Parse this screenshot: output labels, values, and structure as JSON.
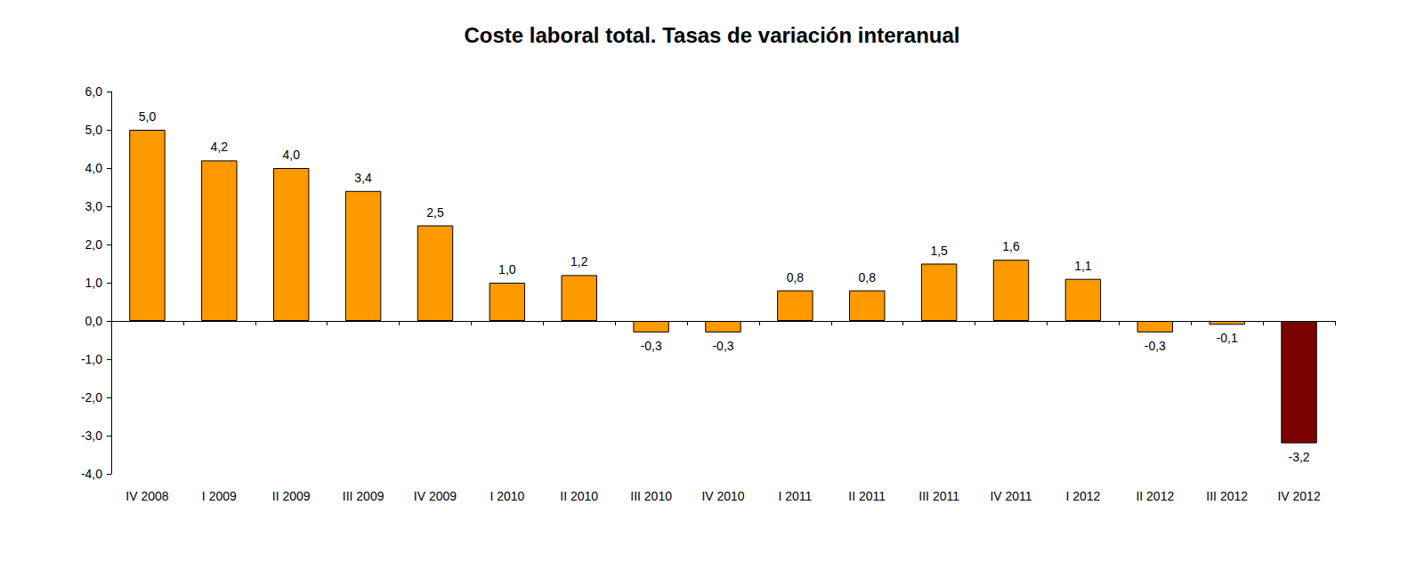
{
  "chart_data": {
    "type": "bar",
    "title": "Coste laboral total. Tasas de variación interanual",
    "categories": [
      "IV 2008",
      "I 2009",
      "II 2009",
      "III 2009",
      "IV 2009",
      "I 2010",
      "II 2010",
      "III 2010",
      "IV 2010",
      "I 2011",
      "II 2011",
      "III 2011",
      "IV 2011",
      "I 2012",
      "II 2012",
      "III 2012",
      "IV 2012"
    ],
    "values": [
      5.0,
      4.2,
      4.0,
      3.4,
      2.5,
      1.0,
      1.2,
      -0.3,
      -0.3,
      0.8,
      0.8,
      1.5,
      1.6,
      1.1,
      -0.3,
      -0.1,
      -3.2
    ],
    "value_labels": [
      "5,0",
      "4,2",
      "4,0",
      "3,4",
      "2,5",
      "1,0",
      "1,2",
      "-0,3",
      "-0,3",
      "0,8",
      "0,8",
      "1,5",
      "1,6",
      "1,1",
      "-0,3",
      "-0,1",
      "-3,2"
    ],
    "colors": [
      "#ff9900",
      "#ff9900",
      "#ff9900",
      "#ff9900",
      "#ff9900",
      "#ff9900",
      "#ff9900",
      "#ff9900",
      "#ff9900",
      "#ff9900",
      "#ff9900",
      "#ff9900",
      "#ff9900",
      "#ff9900",
      "#ff9900",
      "#ff9900",
      "#7b0000"
    ],
    "ylim": [
      -4,
      6
    ],
    "yticks": [
      {
        "value": -4,
        "label": "-4,0"
      },
      {
        "value": -3,
        "label": "-3,0"
      },
      {
        "value": -2,
        "label": "-2,0"
      },
      {
        "value": -1,
        "label": "-1,0"
      },
      {
        "value": 0,
        "label": "0,0"
      },
      {
        "value": 1,
        "label": "1,0"
      },
      {
        "value": 2,
        "label": "2,0"
      },
      {
        "value": 3,
        "label": "3,0"
      },
      {
        "value": 4,
        "label": "4,0"
      },
      {
        "value": 5,
        "label": "5,0"
      },
      {
        "value": 6,
        "label": "6,0"
      }
    ],
    "grid": false,
    "data_labels": true
  }
}
